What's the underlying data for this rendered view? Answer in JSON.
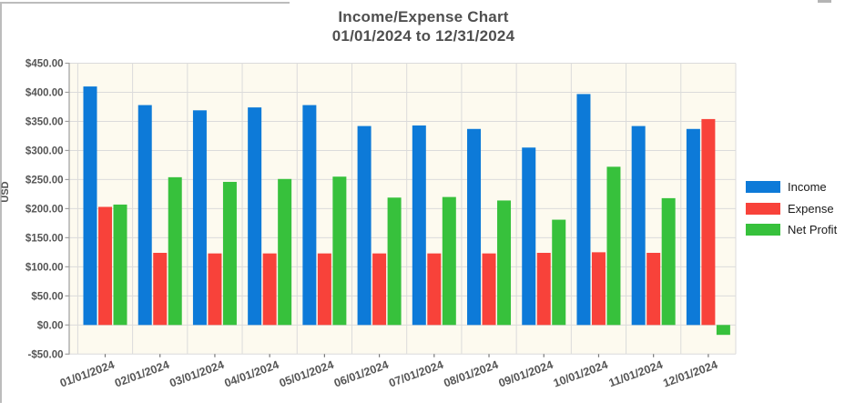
{
  "panel": {
    "background": "#ffffff",
    "border_color": "#bcbcbc"
  },
  "header": {
    "title_line1": "Income/Expense Chart",
    "title_line2": "01/01/2024 to 12/31/2024"
  },
  "chart_data": {
    "type": "bar",
    "title": "Income/Expense Chart",
    "subtitle": "01/01/2024 to 12/31/2024",
    "xlabel": "",
    "ylabel": "USD",
    "ylim": [
      -50,
      450
    ],
    "ytick_step": 50,
    "y_tick_labels": [
      "$450.00",
      "$400.00",
      "$350.00",
      "$300.00",
      "$250.00",
      "$200.00",
      "$150.00",
      "$100.00",
      "$50.00",
      "$0.00",
      "-$50.00"
    ],
    "categories": [
      "01/01/2024",
      "02/01/2024",
      "03/01/2024",
      "04/01/2024",
      "05/01/2024",
      "06/01/2024",
      "07/01/2024",
      "08/01/2024",
      "09/01/2024",
      "10/01/2024",
      "11/01/2024",
      "12/01/2024"
    ],
    "series": [
      {
        "name": "Income",
        "color": "#0d7ad8",
        "values": [
          410,
          378,
          369,
          374,
          378,
          342,
          343,
          337,
          305,
          397,
          342,
          337
        ]
      },
      {
        "name": "Expense",
        "color": "#f8423a",
        "values": [
          203,
          124,
          123,
          123,
          123,
          123,
          123,
          123,
          124,
          125,
          124,
          354
        ]
      },
      {
        "name": "Net Profit",
        "color": "#37c13c",
        "values": [
          207,
          254,
          246,
          251,
          255,
          219,
          220,
          214,
          181,
          272,
          218,
          -17
        ]
      }
    ],
    "legend_position": "right",
    "grid": true,
    "plot_background": "#fdfaef",
    "gridline_color": "#dbdbdb",
    "axis_color": "#9e9e9e",
    "tick_color": "#777777",
    "tick_label_color": "#555555",
    "title_color": "#4f4f4f"
  }
}
